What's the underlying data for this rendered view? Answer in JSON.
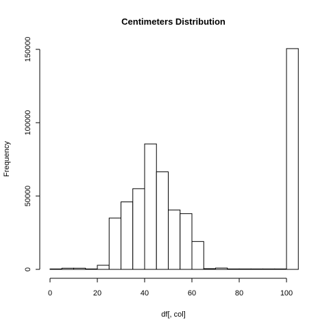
{
  "chart_data": {
    "type": "bar",
    "title": "Centimeters  Distribution",
    "xlabel": "df[, col]",
    "ylabel": "Frequency",
    "bin_width": 5,
    "xlim": [
      0,
      105
    ],
    "ylim": [
      0,
      150000
    ],
    "xticks": [
      0,
      20,
      40,
      60,
      80,
      100
    ],
    "yticks": [
      0,
      50000,
      100000,
      150000
    ],
    "bins": [
      {
        "start": 0,
        "end": 5,
        "value": 300
      },
      {
        "start": 5,
        "end": 10,
        "value": 800
      },
      {
        "start": 10,
        "end": 15,
        "value": 800
      },
      {
        "start": 15,
        "end": 20,
        "value": 300
      },
      {
        "start": 20,
        "end": 25,
        "value": 2800
      },
      {
        "start": 25,
        "end": 30,
        "value": 35000
      },
      {
        "start": 30,
        "end": 35,
        "value": 46000
      },
      {
        "start": 35,
        "end": 40,
        "value": 55000
      },
      {
        "start": 40,
        "end": 45,
        "value": 85500
      },
      {
        "start": 45,
        "end": 50,
        "value": 66500
      },
      {
        "start": 50,
        "end": 55,
        "value": 40500
      },
      {
        "start": 55,
        "end": 60,
        "value": 38000
      },
      {
        "start": 60,
        "end": 65,
        "value": 19000
      },
      {
        "start": 65,
        "end": 70,
        "value": 500
      },
      {
        "start": 70,
        "end": 75,
        "value": 900
      },
      {
        "start": 75,
        "end": 80,
        "value": 300
      },
      {
        "start": 80,
        "end": 85,
        "value": 300
      },
      {
        "start": 85,
        "end": 90,
        "value": 300
      },
      {
        "start": 90,
        "end": 95,
        "value": 300
      },
      {
        "start": 95,
        "end": 100,
        "value": 300
      },
      {
        "start": 100,
        "end": 105,
        "value": 150500
      }
    ],
    "grid": false,
    "legend": "none"
  }
}
